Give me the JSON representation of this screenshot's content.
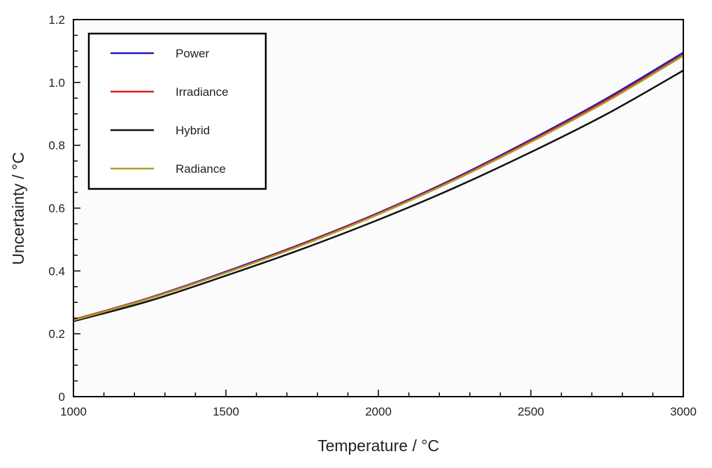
{
  "chart_data": {
    "type": "line",
    "title": "",
    "xlabel": "Temperature / °C",
    "ylabel": "Uncertainty / °C",
    "xlim": [
      1000,
      3000
    ],
    "ylim": [
      0,
      1.2
    ],
    "x_ticks": [
      1000,
      1500,
      2000,
      2500,
      3000
    ],
    "y_ticks": [
      0,
      0.2,
      0.4,
      0.6,
      0.8,
      1.0,
      1.2
    ],
    "y_tick_labels": [
      "0",
      "0.2",
      "0.4",
      "0.6",
      "0.8",
      "1.0",
      "1.2"
    ],
    "grid": false,
    "legend_position": "top-left",
    "x": [
      1000,
      1250,
      1500,
      1750,
      2000,
      2250,
      2500,
      2750,
      3000
    ],
    "series": [
      {
        "name": "Power",
        "color": "#1a1ab8",
        "values": [
          0.245,
          0.315,
          0.398,
          0.487,
          0.585,
          0.695,
          0.818,
          0.95,
          1.095
        ]
      },
      {
        "name": "Irradiance",
        "color": "#d81e1e",
        "values": [
          0.245,
          0.314,
          0.396,
          0.485,
          0.583,
          0.692,
          0.814,
          0.945,
          1.088
        ]
      },
      {
        "name": "Hybrid",
        "color": "#111111",
        "values": [
          0.24,
          0.305,
          0.385,
          0.47,
          0.563,
          0.665,
          0.778,
          0.9,
          1.038
        ]
      },
      {
        "name": "Radiance",
        "color": "#a9a02a",
        "values": [
          0.243,
          0.312,
          0.394,
          0.482,
          0.58,
          0.689,
          0.81,
          0.94,
          1.085
        ]
      }
    ]
  }
}
